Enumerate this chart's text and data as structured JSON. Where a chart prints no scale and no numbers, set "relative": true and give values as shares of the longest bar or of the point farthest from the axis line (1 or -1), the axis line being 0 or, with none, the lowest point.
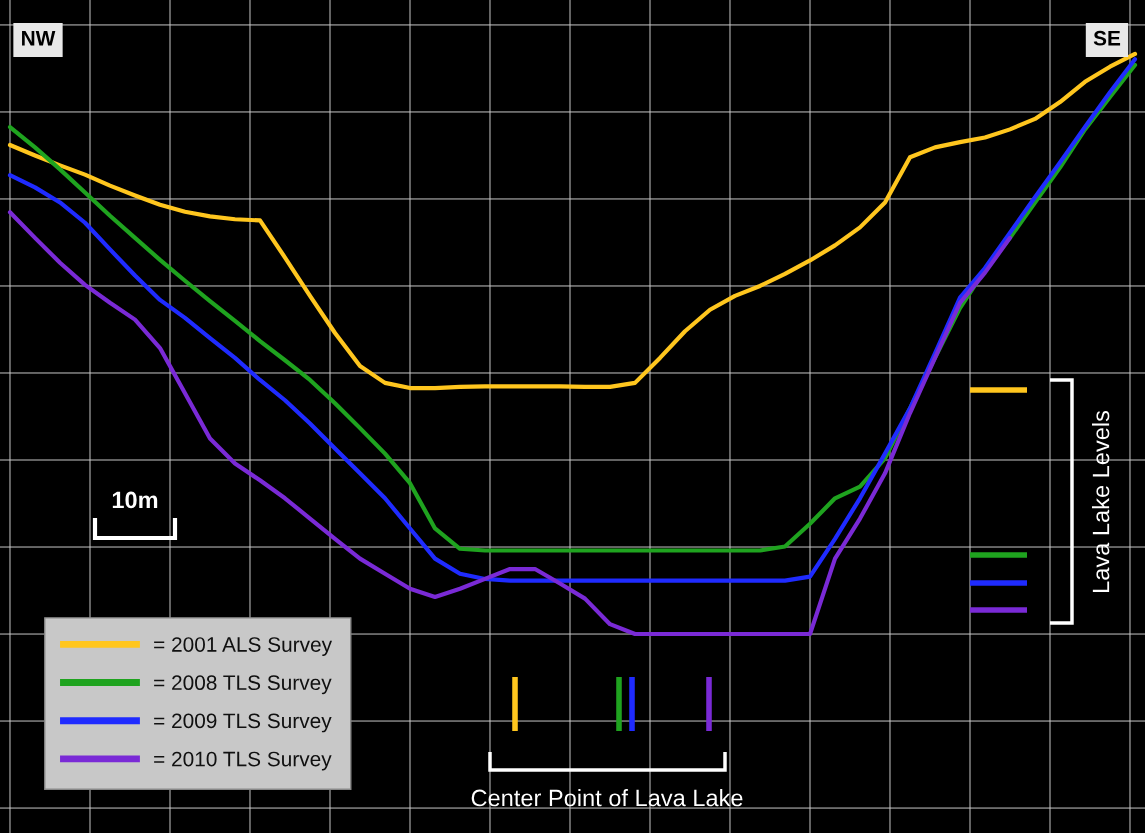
{
  "chart_data": {
    "type": "line",
    "relative": true,
    "grid": true,
    "legend": "bottom left",
    "marker": "none",
    "line_style": "solid",
    "categories": [
      null,
      null,
      null,
      null,
      null,
      null,
      null,
      null,
      null,
      null,
      null,
      null,
      null,
      null,
      null,
      null,
      null,
      null,
      null,
      null,
      null,
      null,
      null,
      null,
      null,
      null,
      null,
      null,
      null,
      null,
      null,
      null,
      null,
      null,
      null,
      null,
      null,
      null,
      null,
      null,
      null,
      null,
      null,
      null,
      null,
      null
    ],
    "series": [
      {
        "name": "= 2001 ALS Survey",
        "color": "#ffc61e",
        "values": [
          0.843,
          0.825,
          0.808,
          0.792,
          0.773,
          0.756,
          0.74,
          0.728,
          0.72,
          0.715,
          0.713,
          0.649,
          0.583,
          0.519,
          0.462,
          0.433,
          0.424,
          0.424,
          0.426,
          0.427,
          0.427,
          0.427,
          0.427,
          0.426,
          0.426,
          0.433,
          0.476,
          0.522,
          0.559,
          0.583,
          0.6,
          0.621,
          0.644,
          0.67,
          0.701,
          0.744,
          0.822,
          0.839,
          0.848,
          0.856,
          0.87,
          0.888,
          0.917,
          0.952,
          0.978,
          1
        ]
      },
      {
        "name": "= 2008 TLS Survey",
        "color": "#1fa31f",
        "values": [
          0.874,
          0.839,
          0.801,
          0.761,
          0.721,
          0.683,
          0.645,
          0.609,
          0.574,
          0.54,
          0.505,
          0.472,
          0.438,
          0.398,
          0.355,
          0.311,
          0.26,
          0.182,
          0.147,
          0.144,
          0.144,
          0.144,
          0.144,
          0.144,
          0.144,
          0.144,
          0.144,
          0.144,
          0.144,
          0.144,
          0.144,
          0.151,
          0.19,
          0.234,
          0.254,
          0.303,
          0.389,
          0.476,
          0.562,
          0.628,
          0.683,
          0.744,
          0.804,
          0.87,
          0.926,
          0.981
        ]
      },
      {
        "name": "= 2009 TLS Survey",
        "color": "#1f2bff",
        "values": [
          0.791,
          0.77,
          0.744,
          0.709,
          0.663,
          0.618,
          0.576,
          0.545,
          0.51,
          0.476,
          0.438,
          0.403,
          0.363,
          0.32,
          0.277,
          0.234,
          0.182,
          0.13,
          0.104,
          0.095,
          0.092,
          0.092,
          0.092,
          0.092,
          0.092,
          0.092,
          0.092,
          0.092,
          0.092,
          0.092,
          0.092,
          0.092,
          0.099,
          0.164,
          0.234,
          0.311,
          0.389,
          0.484,
          0.58,
          0.631,
          0.692,
          0.753,
          0.813,
          0.874,
          0.934,
          0.991
        ]
      },
      {
        "name": "= 2010 TLS Survey",
        "color": "#7a2ad6",
        "values": [
          0.727,
          0.683,
          0.64,
          0.602,
          0.571,
          0.542,
          0.493,
          0.415,
          0.337,
          0.294,
          0.265,
          0.234,
          0.199,
          0.164,
          0.13,
          0.104,
          0.078,
          0.064,
          0.078,
          0.095,
          0.112,
          0.112,
          0.087,
          0.061,
          0.017,
          0,
          0,
          0,
          0,
          0,
          0,
          0,
          0,
          0.13,
          0.199,
          0.277,
          0.381,
          0.476,
          0.571,
          0.623,
          0.683,
          null,
          null,
          null,
          null,
          null
        ]
      }
    ],
    "annotations": [
      "NW",
      "SE",
      "10m",
      "Lava Lake Levels",
      "Center Point of Lava Lake"
    ]
  }
}
